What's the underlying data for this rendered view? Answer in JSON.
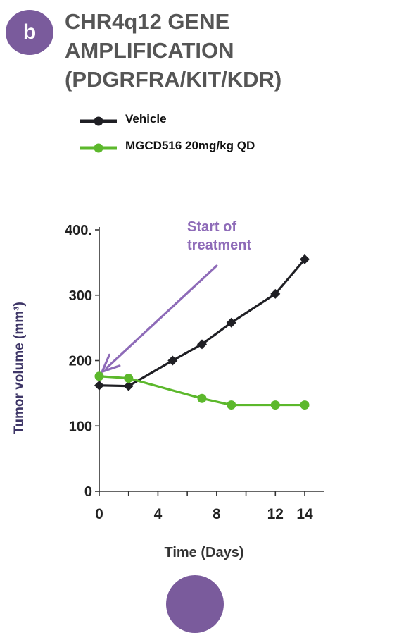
{
  "badge": "b",
  "title_lines": [
    "CHR4q12 GENE",
    "AMPLIFICATION",
    "(PDGRFRA/KIT/KDR)"
  ],
  "colors": {
    "accent": "#7a5b9c",
    "annotation": "#8e6bb8",
    "vehicle": "#1f1f24",
    "treatment": "#5cb82c"
  },
  "chart_data": {
    "type": "line",
    "xlabel": "Time (Days)",
    "ylabel": "Tumor volume (mm³)",
    "xlim": [
      0,
      14
    ],
    "ylim": [
      0,
      400
    ],
    "xticks": [
      0,
      4,
      8,
      12,
      14
    ],
    "yticks": [
      0,
      100,
      200,
      300,
      400
    ],
    "ytick_labels": [
      "0",
      "100",
      "200",
      "300",
      "400."
    ],
    "legend_position": "top-left",
    "series": [
      {
        "name": "Vehicle",
        "color": "#1f1f24",
        "marker": "diamond",
        "x": [
          0,
          2,
          5,
          7,
          9,
          12,
          14
        ],
        "y": [
          162,
          161,
          200,
          225,
          258,
          302,
          355
        ]
      },
      {
        "name": "MGCD516 20mg/kg QD",
        "color": "#5cb82c",
        "marker": "circle",
        "x": [
          0,
          2,
          7,
          9,
          12,
          14
        ],
        "y": [
          176,
          173,
          142,
          132,
          132,
          132
        ]
      }
    ],
    "annotation": {
      "lines": [
        "Start of",
        "treatment"
      ],
      "arrow_from": [
        8,
        345
      ],
      "arrow_to": [
        0.2,
        183
      ]
    }
  }
}
